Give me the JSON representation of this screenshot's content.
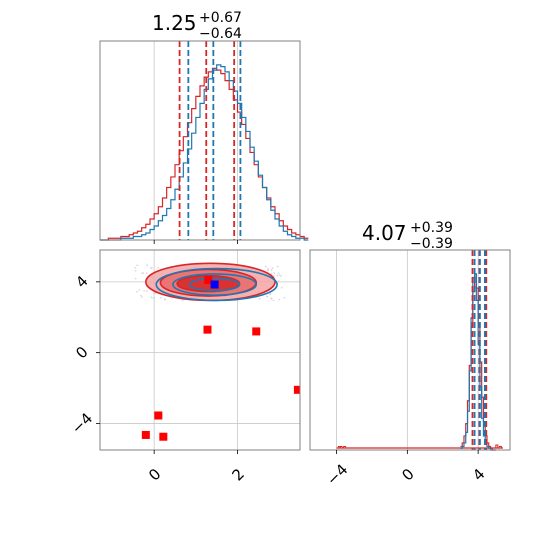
{
  "colors": {
    "red": "#d62728",
    "blue": "#1f77b4",
    "red_fill": "#f4a5a5",
    "red_fill_inner": "#e86a6a",
    "marker_red": "#ff0000",
    "marker_blue": "#0000ff",
    "grid": "#c8c8c8",
    "spine": "#808080"
  },
  "chart_data": [
    {
      "panel": "top-left",
      "type": "histogram",
      "title": {
        "value": "1.25",
        "plus": "+0.67",
        "minus": "−0.64"
      },
      "xlim": [
        -1.3,
        3.5
      ],
      "xticks": [
        0,
        2
      ],
      "grid": true,
      "vlines": {
        "red": [
          0.61,
          1.25,
          1.92
        ],
        "blue": [
          0.82,
          1.42,
          2.07
        ]
      },
      "series": [
        {
          "color": "red",
          "bin_edges_start": -1.3,
          "bin_width": 0.1,
          "counts": [
            0,
            0,
            1,
            1,
            1,
            2,
            2,
            3,
            4,
            5,
            7,
            9,
            12,
            15,
            19,
            24,
            30,
            36,
            43,
            51,
            59,
            67,
            75,
            82,
            88,
            93,
            96,
            98,
            97,
            95,
            91,
            86,
            80,
            73,
            66,
            58,
            50,
            43,
            36,
            30,
            24,
            19,
            15,
            11,
            8,
            6,
            4,
            3,
            2,
            1
          ]
        },
        {
          "color": "blue",
          "bin_edges_start": -1.3,
          "bin_width": 0.1,
          "counts": [
            0,
            0,
            0,
            0,
            0,
            1,
            1,
            1,
            2,
            2,
            3,
            4,
            6,
            8,
            11,
            14,
            18,
            23,
            29,
            36,
            44,
            52,
            61,
            70,
            78,
            86,
            92,
            97,
            100,
            99,
            96,
            91,
            85,
            78,
            70,
            62,
            53,
            45,
            37,
            30,
            23,
            17,
            12,
            8,
            5,
            3,
            2,
            1,
            1,
            0
          ]
        }
      ]
    },
    {
      "panel": "bottom-left",
      "type": "scatter",
      "xlim": [
        -1.3,
        3.5
      ],
      "ylim": [
        -5.5,
        5.8
      ],
      "xticks": [
        0,
        2
      ],
      "yticks": [
        -4,
        0,
        4
      ],
      "xtick_labels": [
        "0",
        "2"
      ],
      "ytick_labels": [
        "−4",
        "0",
        "4"
      ],
      "grid": true,
      "red_markers": [
        [
          1.3,
          4.1
        ],
        [
          1.28,
          1.3
        ],
        [
          2.45,
          1.2
        ],
        [
          3.45,
          -2.1
        ],
        [
          0.1,
          -3.55
        ],
        [
          -0.2,
          -4.65
        ],
        [
          0.22,
          -4.75
        ]
      ],
      "blue_markers": [
        [
          1.45,
          3.85
        ]
      ],
      "red_contours": [
        {
          "cx": 1.35,
          "cy": 4.0,
          "rx": 1.55,
          "ry": 1.05,
          "level": "outer"
        },
        {
          "cx": 1.3,
          "cy": 3.95,
          "rx": 1.15,
          "ry": 0.75,
          "level": "mid"
        },
        {
          "cx": 1.3,
          "cy": 3.9,
          "rx": 0.75,
          "ry": 0.45,
          "level": "inner"
        }
      ],
      "blue_contours": [
        {
          "cx": 1.5,
          "cy": 3.85,
          "rx": 1.45,
          "ry": 0.9
        },
        {
          "cx": 1.45,
          "cy": 3.85,
          "rx": 1.0,
          "ry": 0.6
        },
        {
          "cx": 1.45,
          "cy": 3.85,
          "rx": 0.6,
          "ry": 0.35
        }
      ]
    },
    {
      "panel": "bottom-right",
      "type": "histogram",
      "title": {
        "value": "4.07",
        "plus": "+0.39",
        "minus": "−0.39"
      },
      "xlim": [
        -5.5,
        5.8
      ],
      "xticks": [
        -4,
        0,
        4
      ],
      "xtick_labels": [
        "−4",
        "0",
        "4"
      ],
      "grid": true,
      "vlines": {
        "red": [
          3.68,
          4.07,
          4.46
        ],
        "blue": [
          3.8,
          4.1,
          4.38
        ]
      },
      "series": [
        {
          "color": "red",
          "bin_edges_start": 3.0,
          "bin_width": 0.1,
          "counts": [
            2,
            4,
            8,
            15,
            28,
            48,
            70,
            90,
            100,
            92,
            72,
            50,
            30,
            16,
            8,
            4,
            2,
            1,
            0,
            0
          ]
        },
        {
          "color": "blue",
          "bin_edges_start": 3.0,
          "bin_width": 0.1,
          "counts": [
            1,
            2,
            4,
            10,
            22,
            45,
            75,
            98,
            100,
            85,
            60,
            36,
            18,
            8,
            4,
            2,
            1,
            0,
            0,
            0
          ]
        }
      ],
      "outlier_red_bins": [
        [
          -3.9,
          1
        ],
        [
          -3.8,
          1
        ],
        [
          -3.6,
          1
        ],
        [
          5.0,
          2
        ],
        [
          5.2,
          1
        ]
      ]
    }
  ]
}
